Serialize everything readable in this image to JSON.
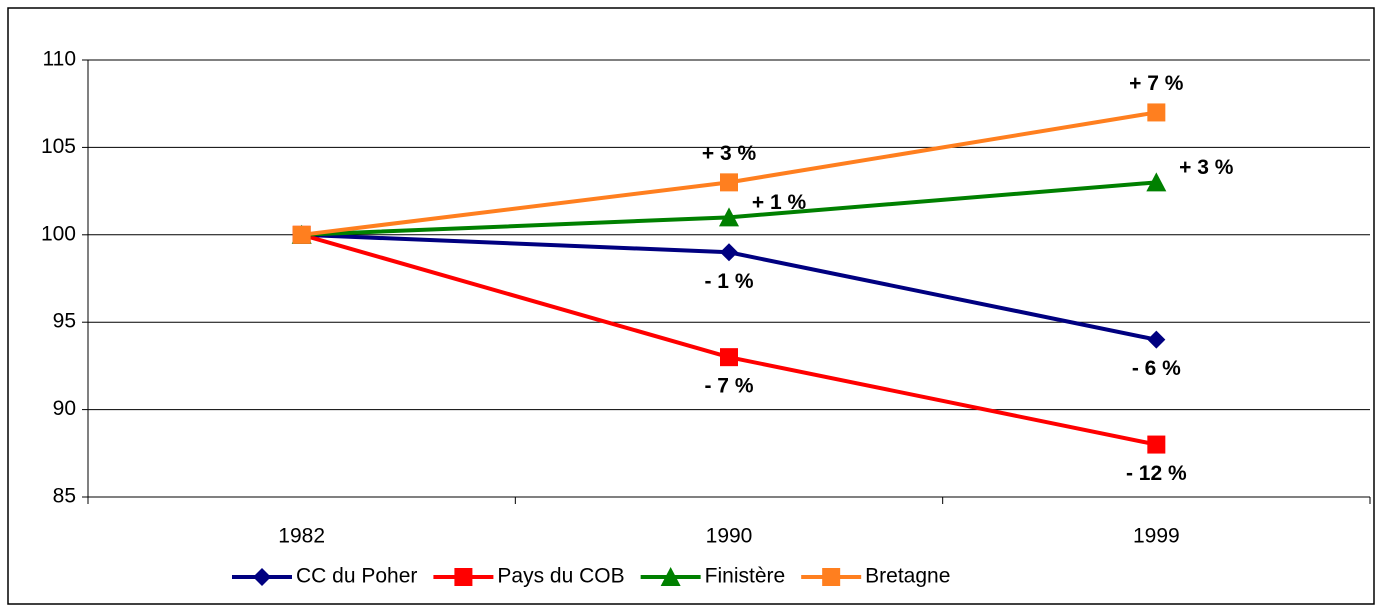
{
  "chart_data": {
    "type": "line",
    "categories": [
      "1982",
      "1990",
      "1999"
    ],
    "series": [
      {
        "name": "CC du Poher",
        "color": "#000080",
        "marker": "diamond",
        "values": [
          100,
          99,
          94
        ],
        "value_labels": [
          null,
          "- 1 %",
          "- 6 %"
        ]
      },
      {
        "name": "Pays du COB",
        "color": "#ff0000",
        "marker": "square",
        "values": [
          100,
          93,
          88
        ],
        "value_labels": [
          null,
          "- 7 %",
          "- 12 %"
        ]
      },
      {
        "name": "Finistère",
        "color": "#008000",
        "marker": "triangle",
        "values": [
          100,
          101,
          103
        ],
        "value_labels": [
          null,
          "+ 1 %",
          "+ 3 %"
        ]
      },
      {
        "name": "Bretagne",
        "color": "#ff7f1f",
        "marker": "square",
        "values": [
          100,
          103,
          107
        ],
        "value_labels": [
          null,
          "+ 3 %",
          "+ 7 %"
        ]
      }
    ],
    "ylim": [
      85,
      110
    ],
    "yticks": [
      85,
      90,
      95,
      100,
      105,
      110
    ],
    "grid": true,
    "legend": "bottom"
  }
}
